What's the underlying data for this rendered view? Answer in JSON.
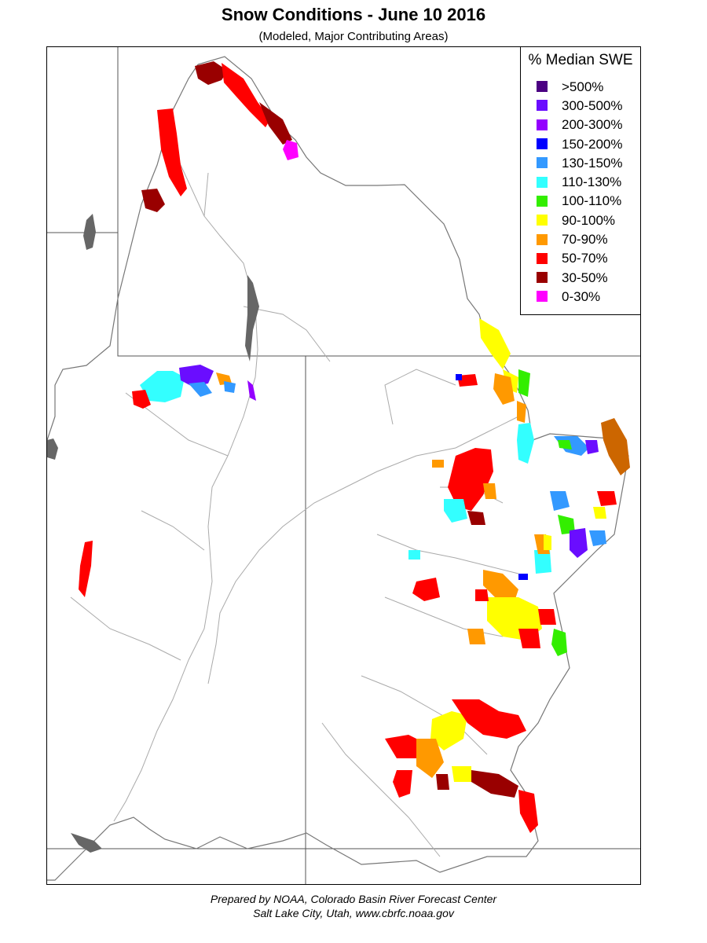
{
  "title": "Snow Conditions - June 10 2016",
  "subtitle": "(Modeled, Major Contributing Areas)",
  "legend": {
    "title": "% Median SWE",
    "items": [
      {
        "label": ">500%",
        "color": "#4b0082"
      },
      {
        "label": "300-500%",
        "color": "#6a0dff"
      },
      {
        "label": "200-300%",
        "color": "#9400ff"
      },
      {
        "label": "150-200%",
        "color": "#0000ff"
      },
      {
        "label": "130-150%",
        "color": "#3399ff"
      },
      {
        "label": "110-130%",
        "color": "#33ffff"
      },
      {
        "label": "100-110%",
        "color": "#33ee00"
      },
      {
        "label": "90-100%",
        "color": "#ffff00"
      },
      {
        "label": "70-90%",
        "color": "#ff9900"
      },
      {
        "label": "50-70%",
        "color": "#ff0000"
      },
      {
        "label": "30-50%",
        "color": "#990000"
      },
      {
        "label": "0-30%",
        "color": "#ff00ff"
      }
    ]
  },
  "footer": {
    "line1": "Prepared by NOAA, Colorado Basin River Forecast Center",
    "line2": "Salt Lake City, Utah, www.cbrfc.noaa.gov"
  }
}
